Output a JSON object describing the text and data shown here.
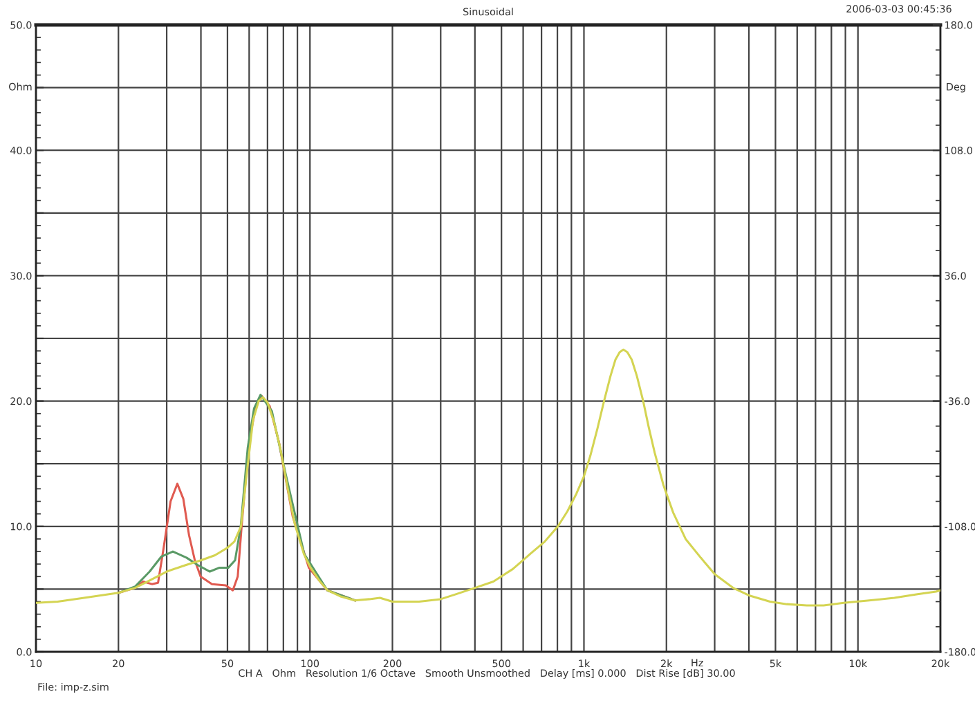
{
  "chart_data": {
    "type": "line",
    "title": "Sinusoidal",
    "xlabel": "Hz",
    "ylabel": "Ohm",
    "y2label": "Deg",
    "annotations": [
      "2006-03-03 00:45:36",
      "CH A   Ohm   Resolution 1/6 Octave   Smooth Unsmoothed   Delay [ms] 0.000   Dist Rise [dB] 30.00",
      "File: imp-z.sim"
    ],
    "log": "x",
    "grid": true,
    "line_style": "solid",
    "xlim": [
      10,
      20000
    ],
    "ylim": [
      0,
      50
    ],
    "y2lim": [
      -180,
      180
    ],
    "xticks": [
      10,
      20,
      {
        "value": 30,
        "label": null
      },
      {
        "value": 40,
        "label": null
      },
      50,
      {
        "value": 60,
        "label": null
      },
      {
        "value": 70,
        "label": null
      },
      {
        "value": 80,
        "label": null
      },
      {
        "value": 90,
        "label": null
      },
      100,
      200,
      {
        "value": 300,
        "label": null
      },
      {
        "value": 400,
        "label": null
      },
      500,
      {
        "value": 600,
        "label": null
      },
      {
        "value": 700,
        "label": null
      },
      {
        "value": 800,
        "label": null
      },
      {
        "value": 900,
        "label": null
      },
      {
        "value": 1000,
        "label": "1k"
      },
      {
        "value": 2000,
        "label": "2k"
      },
      {
        "value": 3000,
        "label": null
      },
      {
        "value": 4000,
        "label": null
      },
      {
        "value": 5000,
        "label": "5k"
      },
      {
        "value": 6000,
        "label": null
      },
      {
        "value": 7000,
        "label": null
      },
      {
        "value": 8000,
        "label": null
      },
      {
        "value": 9000,
        "label": null
      },
      {
        "value": 10000,
        "label": "10k"
      },
      {
        "value": 20000,
        "label": "20k"
      }
    ],
    "yticks": [
      {
        "value": 0,
        "label": "0.0"
      },
      {
        "value": 5,
        "label": null
      },
      {
        "value": 10,
        "label": "10.0"
      },
      {
        "value": 15,
        "label": null
      },
      {
        "value": 20,
        "label": "20.0"
      },
      {
        "value": 25,
        "label": null
      },
      {
        "value": 30,
        "label": "30.0"
      },
      {
        "value": 35,
        "label": null
      },
      {
        "value": 40,
        "label": "40.0"
      },
      {
        "value": 45,
        "label": null
      },
      {
        "value": 50,
        "label": "50.0"
      }
    ],
    "y2ticks": [
      {
        "value": -180,
        "label": "-180.0"
      },
      {
        "value": -108,
        "label": "-108.0"
      },
      {
        "value": -36,
        "label": "-36.0"
      },
      {
        "value": 36,
        "label": "36.0"
      },
      {
        "value": 108,
        "label": "108.0"
      },
      {
        "value": 180,
        "label": "180.0"
      }
    ],
    "series": [
      {
        "color": "#e05a50",
        "x": [
          20,
          23,
          24.6,
          26.5,
          27.9,
          29.2,
          31,
          32.8,
          34.5,
          36.2,
          38,
          39.9,
          43.9,
          49.3,
          52.3,
          54.5,
          56.5,
          59.9,
          63.5,
          66.7,
          71.3,
          77.1,
          86.5,
          99.1,
          115.8,
          146
        ],
        "values": [
          4.7,
          5.1,
          5.6,
          5.4,
          5.5,
          8.2,
          12.0,
          13.4,
          12.2,
          9.3,
          7.3,
          6.0,
          5.4,
          5.3,
          4.9,
          6.0,
          10.4,
          16.7,
          19.6,
          20.4,
          19.6,
          16.7,
          10.8,
          6.7,
          4.9,
          4.1
        ]
      },
      {
        "color": "#5a9a66",
        "x": [
          20,
          23,
          26,
          28.7,
          31.6,
          35.5,
          39.1,
          43.1,
          46.6,
          50.3,
          53.3,
          55.9,
          59.3,
          62.5,
          66,
          72.6,
          81.7,
          95.3,
          115.8,
          146
        ],
        "values": [
          4.7,
          5.2,
          6.4,
          7.6,
          8.0,
          7.5,
          6.9,
          6.4,
          6.7,
          6.7,
          7.3,
          10.0,
          16.3,
          19.4,
          20.5,
          19.2,
          14.1,
          7.8,
          4.9,
          4.1
        ]
      },
      {
        "color": "#d4d452",
        "x": [
          10,
          12,
          15,
          20,
          23,
          25,
          30,
          35,
          40,
          45,
          50,
          53,
          56,
          59,
          62,
          65,
          67.4,
          70,
          74,
          78,
          83,
          88,
          95,
          100,
          108,
          116,
          130,
          146,
          165,
          180,
          200,
          250,
          300,
          342,
          400,
          467,
          550,
          636,
          720,
          803,
          870,
          938,
          1000,
          1054,
          1120,
          1184,
          1250,
          1303,
          1350,
          1393,
          1440,
          1494,
          1560,
          1645,
          1720,
          1811,
          1950,
          2117,
          2350,
          2670,
          3000,
          3500,
          4000,
          4776,
          5500,
          6505,
          7500,
          8874,
          11000,
          13590,
          16500,
          19270,
          20000
        ],
        "values": [
          3.9,
          4.0,
          4.3,
          4.7,
          5.1,
          5.5,
          6.4,
          6.9,
          7.3,
          7.7,
          8.3,
          8.8,
          10.0,
          14.5,
          18.5,
          20.0,
          20.3,
          19.9,
          18.3,
          16.2,
          13.0,
          10.2,
          7.8,
          6.8,
          5.7,
          4.9,
          4.4,
          4.1,
          4.2,
          4.3,
          4.0,
          4.0,
          4.2,
          4.6,
          5.1,
          5.6,
          6.6,
          7.8,
          8.8,
          10.0,
          11.2,
          12.6,
          14.0,
          15.6,
          17.8,
          20.0,
          22.0,
          23.3,
          23.9,
          24.1,
          23.9,
          23.3,
          22.0,
          20.0,
          18.0,
          15.9,
          13.3,
          11.1,
          9.0,
          7.5,
          6.2,
          5.1,
          4.5,
          4.0,
          3.8,
          3.7,
          3.7,
          3.9,
          4.1,
          4.3,
          4.6,
          4.8,
          4.9
        ]
      }
    ]
  }
}
